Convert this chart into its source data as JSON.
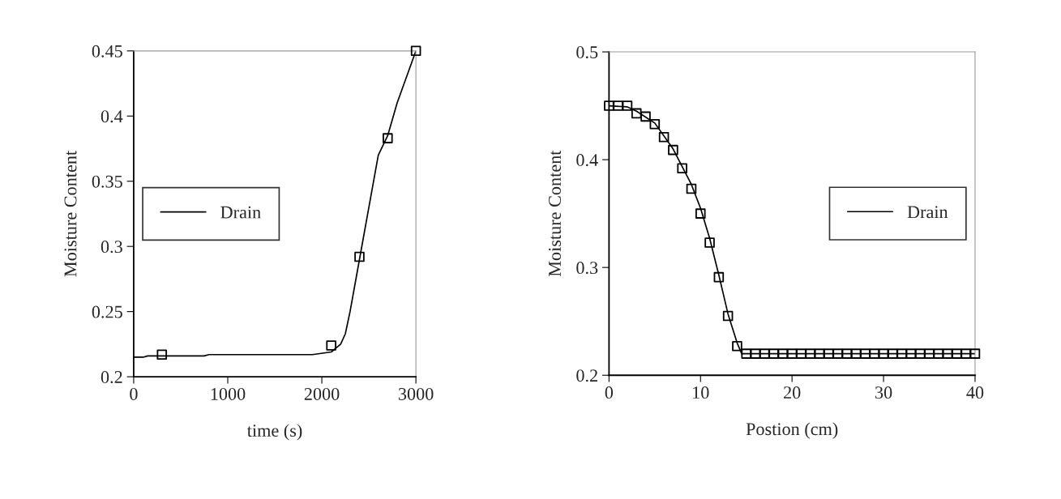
{
  "chart_data": [
    {
      "type": "line",
      "xlabel": "time (s)",
      "ylabel": "Moisture Content",
      "xlim": [
        0,
        3000
      ],
      "xticks": [
        0,
        1000,
        2000,
        3000
      ],
      "ylim": [
        0.2,
        0.45
      ],
      "yticks": [
        0.2,
        0.25,
        0.3,
        0.35,
        0.4,
        0.45
      ],
      "grid": false,
      "legend": "center left",
      "series": [
        {
          "name": "Drain",
          "color": "#000000",
          "marker": "none",
          "line_style": "solid",
          "x": [
            0,
            100,
            150,
            750,
            800,
            1900,
            2100,
            2200,
            2250,
            2300,
            2400,
            2500,
            2600,
            2700,
            2800,
            2900,
            3000
          ],
          "values": [
            0.215,
            0.215,
            0.216,
            0.216,
            0.217,
            0.217,
            0.219,
            0.225,
            0.233,
            0.25,
            0.29,
            0.33,
            0.37,
            0.385,
            0.41,
            0.43,
            0.45
          ]
        },
        {
          "type": "scatter",
          "color": "#000000",
          "marker": "square",
          "x": [
            300,
            2100,
            2400,
            2700,
            3000
          ],
          "values": [
            0.217,
            0.224,
            0.292,
            0.383,
            0.45
          ]
        }
      ]
    },
    {
      "type": "line",
      "xlabel": "Postion (cm)",
      "ylabel": "Moisture Content",
      "xlim": [
        0,
        40
      ],
      "xticks": [
        0,
        10,
        20,
        30,
        40
      ],
      "ylim": [
        0.2,
        0.5
      ],
      "yticks": [
        0.2,
        0.3,
        0.4,
        0.5
      ],
      "grid": false,
      "legend": "center right",
      "series": [
        {
          "name": "Drain",
          "color": "#000000",
          "marker": "none",
          "line_style": "solid",
          "x": [
            0,
            2,
            3,
            5,
            7,
            9,
            10,
            11,
            12,
            13,
            14,
            14.5,
            40
          ],
          "values": [
            0.45,
            0.449,
            0.445,
            0.434,
            0.41,
            0.377,
            0.355,
            0.327,
            0.293,
            0.257,
            0.23,
            0.22,
            0.22
          ]
        },
        {
          "type": "scatter",
          "color": "#000000",
          "marker": "square",
          "x": [
            0,
            1,
            2,
            3,
            4,
            5,
            6,
            7,
            8,
            9,
            10,
            11,
            12,
            13,
            14,
            15,
            16,
            17,
            18,
            19,
            20,
            21,
            22,
            23,
            24,
            25,
            26,
            27,
            28,
            29,
            30,
            31,
            32,
            33,
            34,
            35,
            36,
            37,
            38,
            39,
            40
          ],
          "values": [
            0.45,
            0.45,
            0.45,
            0.443,
            0.44,
            0.433,
            0.421,
            0.409,
            0.392,
            0.373,
            0.35,
            0.323,
            0.291,
            0.255,
            0.227,
            0.22,
            0.22,
            0.22,
            0.22,
            0.22,
            0.22,
            0.22,
            0.22,
            0.22,
            0.22,
            0.22,
            0.22,
            0.22,
            0.22,
            0.22,
            0.22,
            0.22,
            0.22,
            0.22,
            0.22,
            0.22,
            0.22,
            0.22,
            0.22,
            0.22,
            0.22
          ]
        }
      ]
    }
  ]
}
